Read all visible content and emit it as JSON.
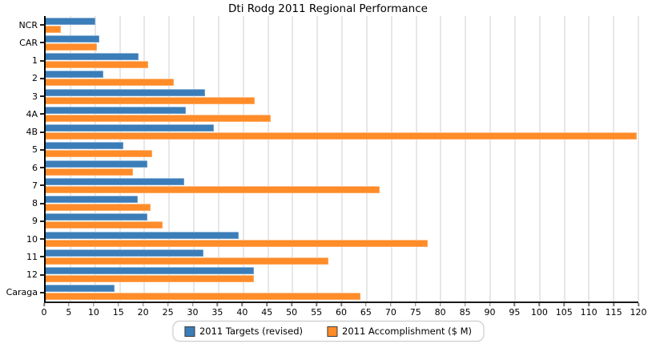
{
  "title": "Dti Rodg 2011 Regional Performance",
  "chart_data": {
    "type": "bar",
    "orientation": "horizontal",
    "title": "Dti Rodg 2011 Regional Performance",
    "categories": [
      "NCR",
      "CAR",
      "1",
      "2",
      "3",
      "4A",
      "4B",
      "5",
      "6",
      "7",
      "8",
      "9",
      "10",
      "11",
      "12",
      "Caraga"
    ],
    "series": [
      {
        "name": "2011 Targets (revised)",
        "color": "#3b7db8",
        "values": [
          10,
          10.8,
          18.8,
          11.7,
          32.3,
          28.4,
          34,
          15.8,
          20.6,
          28,
          18.7,
          20.6,
          39,
          32,
          42.2,
          14
        ]
      },
      {
        "name": "2011 Accomplishment ($ M)",
        "color": "#ff8c29",
        "values": [
          3.1,
          10.4,
          20.8,
          25.9,
          42.3,
          45.6,
          119.7,
          21.5,
          17.6,
          67.7,
          21.2,
          23.7,
          77.4,
          57.3,
          42.2,
          63.8
        ]
      }
    ],
    "xlim": [
      0,
      120
    ],
    "x_tick_step": 5,
    "x_ticks": [
      0,
      5,
      10,
      15,
      20,
      25,
      30,
      35,
      40,
      45,
      50,
      55,
      60,
      65,
      70,
      75,
      80,
      85,
      90,
      95,
      100,
      105,
      110,
      115,
      120
    ],
    "xlabel": "",
    "ylabel": "",
    "grid": true,
    "legend_position": "bottom-center"
  }
}
